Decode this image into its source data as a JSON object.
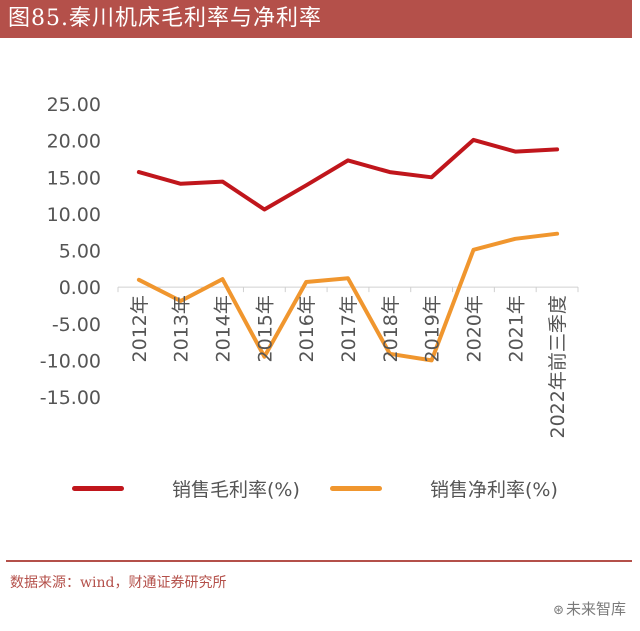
{
  "header": {
    "title": "图85.秦川机床毛利率与净利率"
  },
  "source": "数据来源：wind，财通证券研究所",
  "watermark": "未来智库",
  "chart_data": {
    "type": "line",
    "categories": [
      "2012年",
      "2013年",
      "2014年",
      "2015年",
      "2016年",
      "2017年",
      "2018年",
      "2019年",
      "2020年",
      "2021年",
      "2022年前三季度"
    ],
    "series": [
      {
        "name": "销售毛利率(%)",
        "color": "#c0161c",
        "values": [
          15.7,
          14.1,
          14.4,
          10.6,
          13.9,
          17.3,
          15.7,
          15.0,
          20.1,
          18.5,
          18.8
        ]
      },
      {
        "name": "销售净利率(%)",
        "color": "#f0962e",
        "values": [
          1.0,
          -1.9,
          1.1,
          -9.5,
          0.7,
          1.2,
          -9.1,
          -10.0,
          5.1,
          6.6,
          7.3
        ]
      }
    ],
    "ylim": [
      -15,
      25
    ],
    "yticks": [
      "25.00",
      "20.00",
      "15.00",
      "10.00",
      "5.00",
      "0.00",
      "-5.00",
      "-10.00",
      "-15.00"
    ],
    "xlabel": "",
    "ylabel": "",
    "grid": false,
    "legend": "bottom"
  }
}
